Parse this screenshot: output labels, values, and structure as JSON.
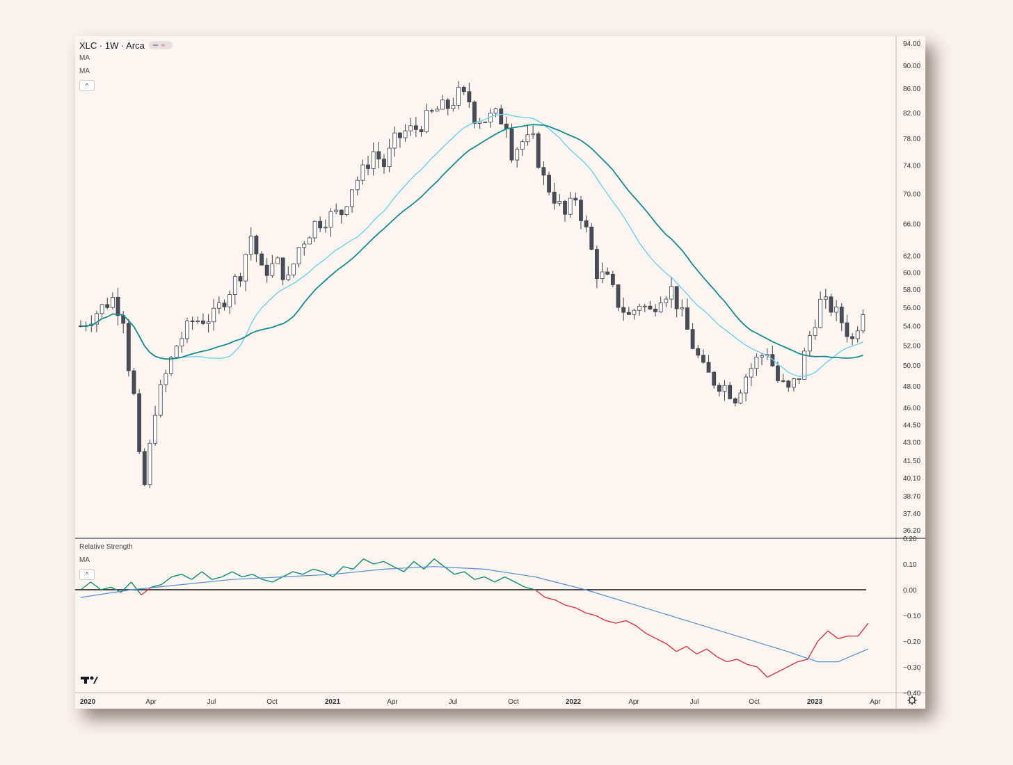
{
  "header": {
    "symbol_line": "XLC · 1W · Arca",
    "ma1_label": "MA",
    "ma2_label": "MA",
    "collapse_icon": "^"
  },
  "indicator_pane": {
    "title": "Relative Strength",
    "ma_label": "MA",
    "collapse_icon": "^"
  },
  "colors": {
    "ma_fast": "#6ed0ea",
    "ma_slow": "#14898f",
    "rs_positive": "#0f8a6f",
    "rs_negative": "#d8344a",
    "rs_ma": "#4f8fd0",
    "candle_up_fill": "#ffffff",
    "candle_down_fill": "#4a4d57",
    "candle_border": "#3a3d47"
  },
  "chart_data": [
    {
      "type": "candlestick",
      "title": "XLC · 1W · Arca",
      "x_ticks": [
        "2020",
        "Apr",
        "Jul",
        "Oct",
        "2021",
        "Apr",
        "Jul",
        "Oct",
        "2022",
        "Apr",
        "Jul",
        "Oct",
        "2023",
        "Apr"
      ],
      "y_ticks": [
        "94.00",
        "90.00",
        "86.00",
        "82.00",
        "78.00",
        "74.00",
        "70.00",
        "66.00",
        "62.00",
        "60.00",
        "58.00",
        "56.00",
        "54.00",
        "52.00",
        "50.00",
        "48.00",
        "46.00",
        "44.50",
        "43.00",
        "41.50",
        "40.10",
        "38.70",
        "37.40",
        "36.20"
      ],
      "y_scale": "log",
      "ylim": [
        36.2,
        94.0
      ],
      "close_path": [
        [
          0,
          54.0
        ],
        [
          3,
          55.5
        ],
        [
          6,
          57.0
        ],
        [
          8,
          55.0
        ],
        [
          9,
          50.0
        ],
        [
          10,
          47.0
        ],
        [
          11,
          41.5
        ],
        [
          12,
          39.5
        ],
        [
          13,
          42.5
        ],
        [
          14,
          46.0
        ],
        [
          16,
          49.0
        ],
        [
          18,
          52.0
        ],
        [
          21,
          54.5
        ],
        [
          25,
          55.0
        ],
        [
          27,
          57.0
        ],
        [
          30,
          60.0
        ],
        [
          32,
          64.5
        ],
        [
          34,
          60.0
        ],
        [
          37,
          61.0
        ],
        [
          39,
          59.0
        ],
        [
          41,
          63.0
        ],
        [
          44,
          66.0
        ],
        [
          47,
          67.0
        ],
        [
          49,
          67.5
        ],
        [
          51,
          71.0
        ],
        [
          53,
          73.0
        ],
        [
          55,
          76.0
        ],
        [
          57,
          74.0
        ],
        [
          59,
          77.5
        ],
        [
          61,
          79.0
        ],
        [
          63,
          79.5
        ],
        [
          65,
          81.0
        ],
        [
          67,
          82.5
        ],
        [
          69,
          83.0
        ],
        [
          71,
          85.0
        ],
        [
          73,
          84.0
        ],
        [
          74,
          81.5
        ],
        [
          76,
          81.0
        ],
        [
          78,
          81.5
        ],
        [
          80,
          80.5
        ],
        [
          81,
          76.0
        ],
        [
          83,
          77.5
        ],
        [
          85,
          77.5
        ],
        [
          87,
          72.0
        ],
        [
          89,
          69.5
        ],
        [
          91,
          67.0
        ],
        [
          93,
          69.5
        ],
        [
          95,
          65.0
        ],
        [
          97,
          60.0
        ],
        [
          99,
          59.0
        ],
        [
          101,
          56.5
        ],
        [
          103,
          55.0
        ],
        [
          105,
          56.5
        ],
        [
          107,
          55.5
        ],
        [
          109,
          57.5
        ],
        [
          111,
          58.0
        ],
        [
          113,
          55.0
        ],
        [
          115,
          52.0
        ],
        [
          117,
          49.5
        ],
        [
          119,
          48.5
        ],
        [
          121,
          48.0
        ],
        [
          123,
          47.0
        ],
        [
          125,
          49.0
        ],
        [
          127,
          50.5
        ],
        [
          129,
          51.5
        ],
        [
          131,
          48.5
        ],
        [
          133,
          47.5
        ],
        [
          135,
          49.0
        ],
        [
          137,
          53.0
        ],
        [
          139,
          56.5
        ],
        [
          141,
          56.0
        ],
        [
          143,
          54.5
        ],
        [
          145,
          52.5
        ],
        [
          147,
          56.0
        ]
      ]
    },
    {
      "type": "line",
      "title": "Relative Strength",
      "y_ticks": [
        "0.20",
        "0.10",
        "0.00",
        "−0.10",
        "−0.20",
        "−0.30",
        "−0.40"
      ],
      "ylim": [
        -0.4,
        0.2
      ],
      "zero_line": 0.0,
      "series": [
        {
          "name": "",
          "values": [
            [
              0,
              0.0
            ],
            [
              2,
              0.03
            ],
            [
              4,
              0.0
            ],
            [
              6,
              0.01
            ],
            [
              8,
              -0.01
            ],
            [
              10,
              0.03
            ],
            [
              12,
              -0.02
            ],
            [
              14,
              0.01
            ],
            [
              16,
              0.02
            ],
            [
              18,
              0.05
            ],
            [
              20,
              0.06
            ],
            [
              22,
              0.04
            ],
            [
              24,
              0.07
            ],
            [
              26,
              0.04
            ],
            [
              28,
              0.05
            ],
            [
              30,
              0.07
            ],
            [
              32,
              0.05
            ],
            [
              34,
              0.06
            ],
            [
              36,
              0.04
            ],
            [
              38,
              0.03
            ],
            [
              40,
              0.05
            ],
            [
              42,
              0.07
            ],
            [
              44,
              0.06
            ],
            [
              46,
              0.08
            ],
            [
              48,
              0.07
            ],
            [
              50,
              0.05
            ],
            [
              52,
              0.09
            ],
            [
              54,
              0.08
            ],
            [
              56,
              0.12
            ],
            [
              58,
              0.1
            ],
            [
              60,
              0.11
            ],
            [
              62,
              0.09
            ],
            [
              64,
              0.07
            ],
            [
              66,
              0.11
            ],
            [
              68,
              0.08
            ],
            [
              70,
              0.12
            ],
            [
              72,
              0.09
            ],
            [
              74,
              0.06
            ],
            [
              76,
              0.07
            ],
            [
              78,
              0.04
            ],
            [
              80,
              0.05
            ],
            [
              82,
              0.03
            ],
            [
              84,
              0.05
            ],
            [
              86,
              0.03
            ],
            [
              88,
              0.01
            ],
            [
              90,
              0.0
            ],
            [
              92,
              -0.03
            ],
            [
              94,
              -0.04
            ],
            [
              96,
              -0.06
            ],
            [
              98,
              -0.07
            ],
            [
              100,
              -0.09
            ],
            [
              102,
              -0.1
            ],
            [
              104,
              -0.12
            ],
            [
              106,
              -0.13
            ],
            [
              108,
              -0.12
            ],
            [
              110,
              -0.14
            ],
            [
              112,
              -0.17
            ],
            [
              114,
              -0.19
            ],
            [
              116,
              -0.21
            ],
            [
              118,
              -0.24
            ],
            [
              120,
              -0.22
            ],
            [
              122,
              -0.25
            ],
            [
              124,
              -0.23
            ],
            [
              126,
              -0.26
            ],
            [
              128,
              -0.28
            ],
            [
              130,
              -0.27
            ],
            [
              132,
              -0.29
            ],
            [
              134,
              -0.3
            ],
            [
              136,
              -0.34
            ],
            [
              138,
              -0.32
            ],
            [
              140,
              -0.3
            ],
            [
              142,
              -0.28
            ],
            [
              144,
              -0.27
            ],
            [
              146,
              -0.2
            ],
            [
              148,
              -0.16
            ],
            [
              150,
              -0.19
            ],
            [
              152,
              -0.18
            ],
            [
              154,
              -0.18
            ],
            [
              156,
              -0.13
            ]
          ]
        },
        {
          "name": "",
          "values": [
            [
              0,
              -0.03
            ],
            [
              10,
              0.0
            ],
            [
              20,
              0.02
            ],
            [
              30,
              0.04
            ],
            [
              40,
              0.05
            ],
            [
              50,
              0.06
            ],
            [
              60,
              0.08
            ],
            [
              70,
              0.09
            ],
            [
              80,
              0.08
            ],
            [
              90,
              0.05
            ],
            [
              100,
              0.0
            ],
            [
              110,
              -0.06
            ],
            [
              120,
              -0.12
            ],
            [
              130,
              -0.18
            ],
            [
              140,
              -0.24
            ],
            [
              146,
              -0.28
            ],
            [
              150,
              -0.28
            ],
            [
              156,
              -0.23
            ]
          ]
        }
      ]
    }
  ]
}
